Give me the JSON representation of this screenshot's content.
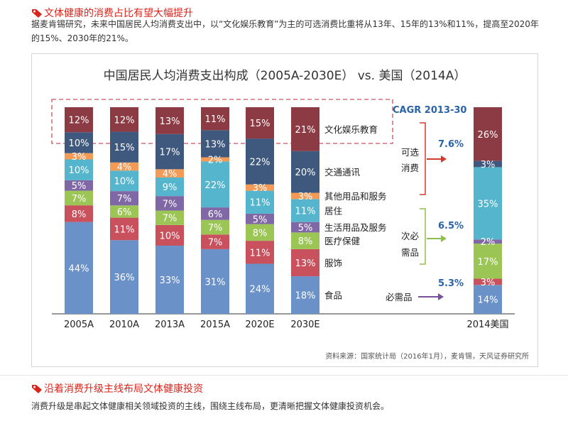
{
  "section1": {
    "title": "文体健康的消费占比有望大幅提升",
    "text": "据麦肯锡研究，未来中国居民人均消费支出中，以“文化娱乐教育”为主的可选消费比重将从13年、15年的13%和11%，提高至2020年的15%、2030年的21%。"
  },
  "section2": {
    "title": "沿着消费升级主线布局文体健康投资",
    "text": "消费升级是串起文体健康相关领域投资的主线，围绕主线布局，更清晰把握文体健康投资机会。"
  },
  "source": "资料来源：国家统计局（2016年1月），麦肯锡，天风证券研究所",
  "colors": {
    "heading": "#d9251c"
  },
  "chart_data": {
    "type": "bar",
    "stacked": true,
    "title": "中国居民人均消费支出构成（2005A-2030E） vs. 美国（2014A）",
    "categories": [
      "2005A",
      "2010A",
      "2013A",
      "2015A",
      "2020E",
      "2030E",
      "2014美国"
    ],
    "series": [
      {
        "name": "食品",
        "color": "#6a91c8",
        "values": [
          44,
          36,
          33,
          31,
          24,
          18,
          14
        ]
      },
      {
        "name": "服饰",
        "color": "#c9505d",
        "values": [
          8,
          11,
          10,
          7,
          11,
          13,
          3
        ]
      },
      {
        "name": "医疗保健",
        "color": "#9bc655",
        "values": [
          7,
          6,
          7,
          7,
          8,
          8,
          17
        ]
      },
      {
        "name": "生活用品及服务",
        "color": "#8068a6",
        "values": [
          5,
          7,
          7,
          6,
          5,
          5,
          2
        ]
      },
      {
        "name": "居住",
        "color": "#55b5cc",
        "values": [
          10,
          10,
          9,
          22,
          11,
          11,
          35
        ]
      },
      {
        "name": "其他用品和服务",
        "color": "#f29a56",
        "values": [
          3,
          4,
          4,
          2,
          3,
          3,
          0
        ]
      },
      {
        "name": "交通通讯",
        "color": "#3f587e",
        "values": [
          10,
          15,
          17,
          13,
          22,
          20,
          3
        ]
      },
      {
        "name": "文化娱乐教育",
        "color": "#8c3a44",
        "values": [
          12,
          12,
          13,
          11,
          15,
          21,
          26
        ]
      }
    ],
    "data_labels": {
      "2014美国": [
        "14%",
        "3%",
        "17%",
        "2%",
        "35%",
        "",
        "3%",
        "26%"
      ]
    },
    "annotations": {
      "cagr_title": "CAGR 2013-30",
      "groups": [
        {
          "label_lines": [
            "可选",
            "消费"
          ],
          "value": "7.6%"
        },
        {
          "label_lines": [
            "次必",
            "需品"
          ],
          "value": "6.5%"
        },
        {
          "label_lines": [
            "必需品"
          ],
          "value": "5.3%"
        }
      ]
    },
    "ylim": [
      0,
      100
    ],
    "grid": false,
    "legend": "inline-right-of-2030E"
  }
}
